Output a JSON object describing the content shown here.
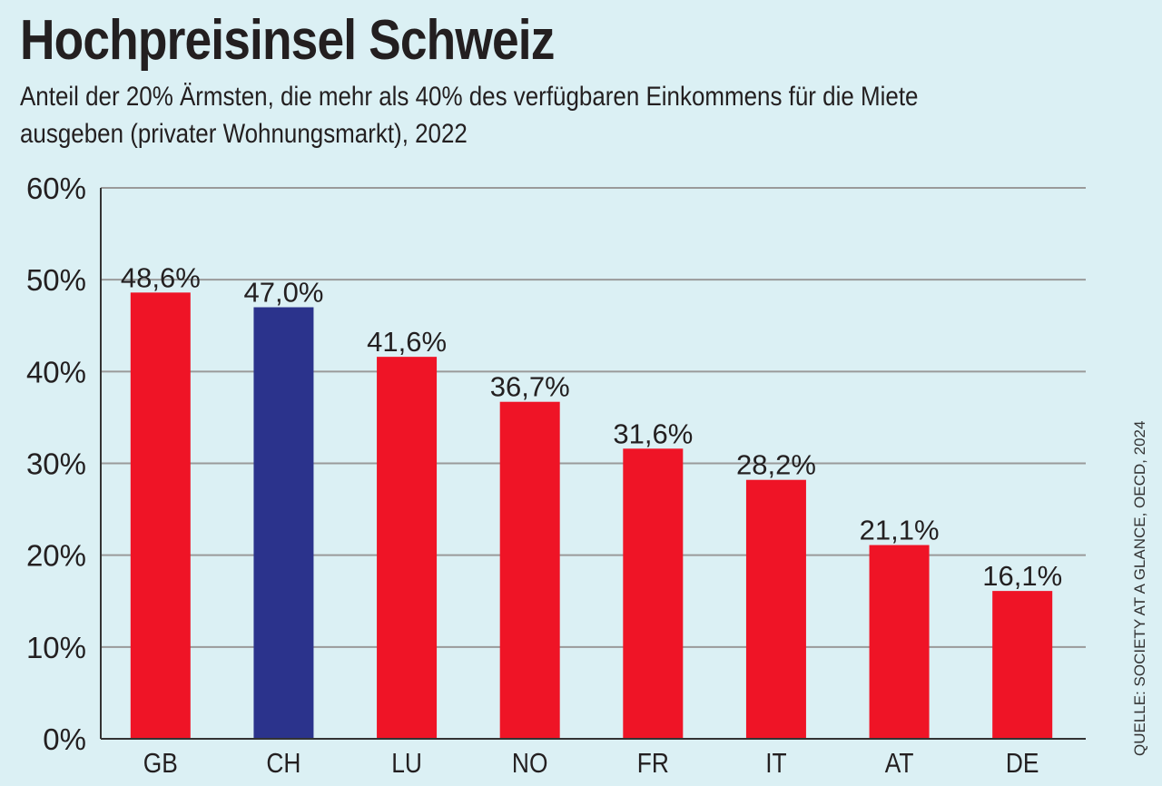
{
  "header": {
    "title": "Hochpreisinsel Schweiz",
    "subtitle_line1": "Anteil der 20% Ärmsten, die mehr als 40% des verfügbaren Einkommens für die Miete",
    "subtitle_line2": "ausgeben (privater Wohnungsmarkt), 2022"
  },
  "source": "QUELLE: SOCIETY AT A GLANCE, OECD, 2024",
  "colors": {
    "background": "#dbf0f4",
    "bar_default": "#ef1426",
    "bar_highlight": "#2b338c",
    "grid": "#9a9a9a",
    "axis": "#333333",
    "text": "#231f20"
  },
  "chart_data": {
    "type": "bar",
    "title": "Hochpreisinsel Schweiz",
    "subtitle": "Anteil der 20% Ärmsten, die mehr als 40% des verfügbaren Einkommens für die Miete ausgeben (privater Wohnungsmarkt), 2022",
    "xlabel": "",
    "ylabel": "",
    "categories": [
      "GB",
      "CH",
      "LU",
      "NO",
      "FR",
      "IT",
      "AT",
      "DE"
    ],
    "values": [
      48.6,
      47.0,
      41.6,
      36.7,
      31.6,
      28.2,
      21.1,
      16.1
    ],
    "data_labels": [
      "48,6%",
      "47,0%",
      "41,6%",
      "36,7%",
      "31,6%",
      "28,2%",
      "21,1%",
      "16,1%"
    ],
    "highlight_category": "CH",
    "ylim": [
      0,
      60
    ],
    "yticks": [
      0,
      10,
      20,
      30,
      40,
      50,
      60
    ],
    "ytick_labels": [
      "0%",
      "10%",
      "20%",
      "30%",
      "40%",
      "50%",
      "60%"
    ],
    "grid": true,
    "legend": "none",
    "source": "QUELLE: SOCIETY AT A GLANCE, OECD, 2024"
  }
}
